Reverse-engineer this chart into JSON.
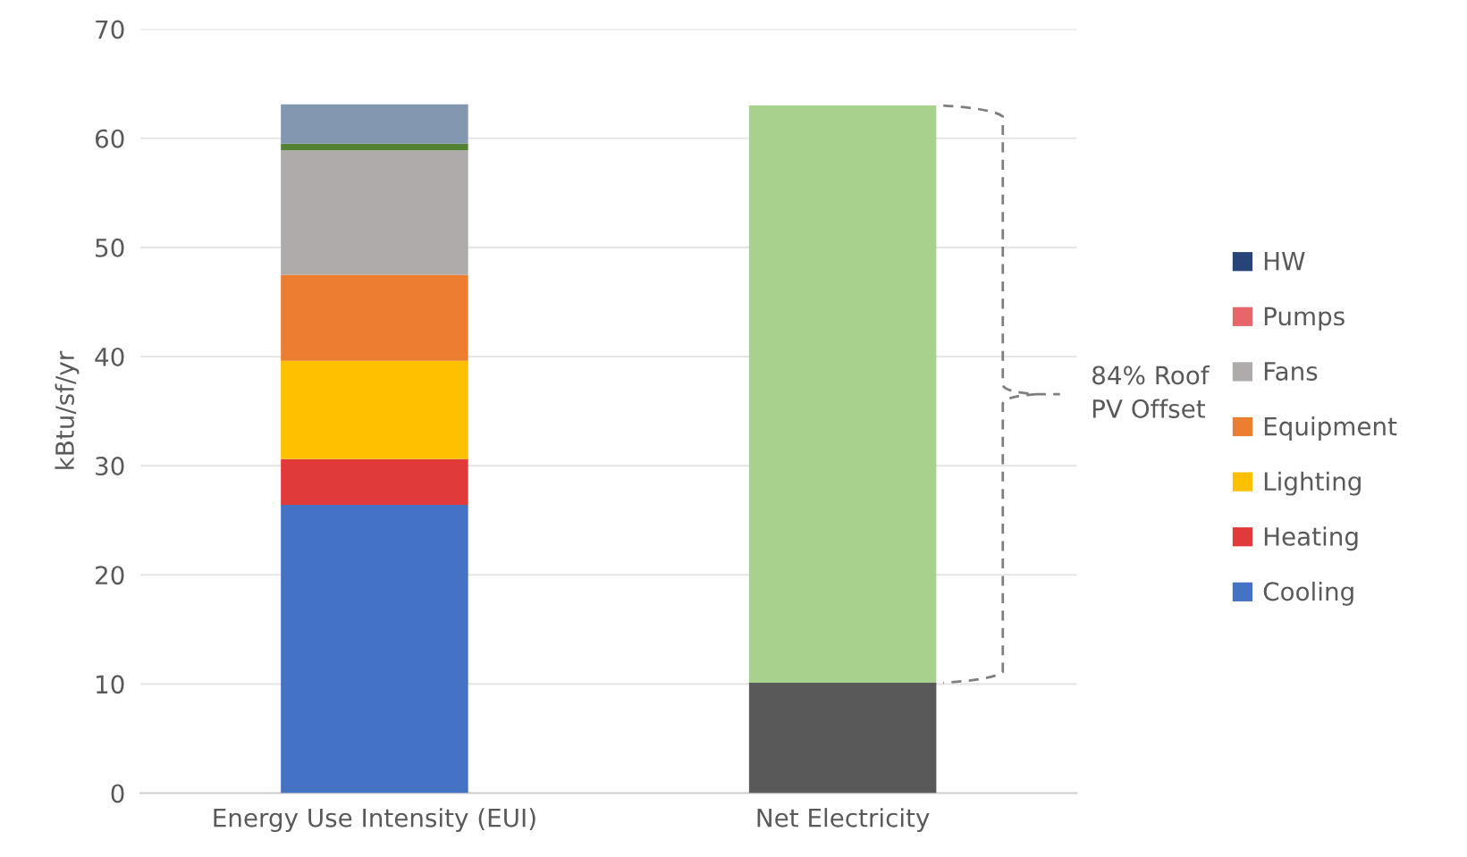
{
  "chart_data": {
    "type": "bar",
    "stacked": true,
    "ylabel": "kBtu/sf/yr",
    "categories": [
      "Energy Use Intensity (EUI)",
      "Net Electricity"
    ],
    "series": [
      {
        "name": "Cooling",
        "color": "#4472c4",
        "values": [
          26.4,
          null
        ]
      },
      {
        "name": "Heating",
        "color": "#e03a3a",
        "values": [
          4.2,
          null
        ]
      },
      {
        "name": "Lighting",
        "color": "#ffc000",
        "values": [
          9.0,
          null
        ]
      },
      {
        "name": "Equipment",
        "color": "#ed7d31",
        "values": [
          7.9,
          null
        ]
      },
      {
        "name": "Fans",
        "color": "#afabab",
        "values": [
          11.4,
          null
        ]
      },
      {
        "name": "Pumps",
        "color": "#e8666a",
        "values": [
          0,
          null
        ]
      },
      {
        "name": "HW",
        "color": "#264478",
        "values": [
          0,
          null
        ]
      },
      {
        "color": "#548235",
        "values": [
          0.6,
          null
        ]
      },
      {
        "color": "#8497b0",
        "values": [
          3.6,
          null
        ]
      },
      {
        "color": "#595959",
        "values": [
          null,
          10.1
        ]
      },
      {
        "color": "#a9d18e",
        "values": [
          null,
          52.9
        ]
      }
    ],
    "ylim": [
      0,
      70
    ],
    "yticks": [
      0,
      10,
      20,
      30,
      40,
      50,
      60,
      70
    ],
    "grid": "y",
    "legend": "right",
    "annotations": [
      "84% Roof\nPV Offset"
    ]
  }
}
